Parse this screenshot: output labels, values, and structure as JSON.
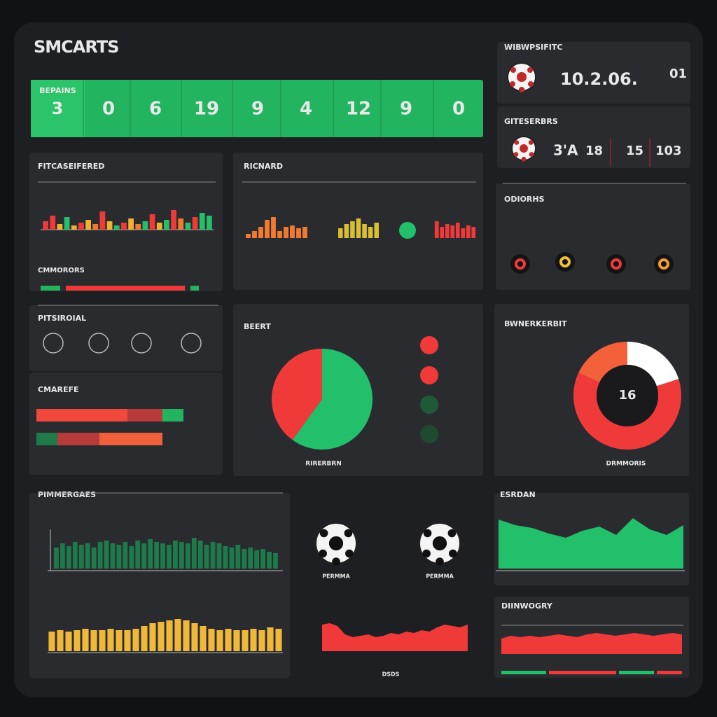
{
  "header": {
    "title": "SMCARTS"
  },
  "kpis": {
    "label": "BEPAINS",
    "values": [
      3,
      0,
      6,
      19,
      9,
      4,
      12,
      9,
      0
    ]
  },
  "trend": {
    "title": "FITCASEIFERED",
    "subtitle": "CMMORORS",
    "values": [
      12,
      20,
      8,
      18,
      6,
      10,
      14,
      8,
      26,
      12,
      6,
      10,
      16,
      8,
      12,
      22,
      10,
      14,
      28,
      16,
      10,
      18,
      24,
      20
    ],
    "colors": [
      "#f03a3a",
      "#f03a3a",
      "#f0b030",
      "#22c06a",
      "#f0b030",
      "#f03a3a",
      "#f0b030",
      "#f07a30",
      "#f03a3a",
      "#f0b030",
      "#22c06a",
      "#f03a3a",
      "#f0b030",
      "#f07a30",
      "#22c06a",
      "#f03a3a",
      "#f0b030",
      "#22c06a",
      "#f03a3a",
      "#f07a30",
      "#22c06a",
      "#f03a3a",
      "#22c06a",
      "#22c06a"
    ]
  },
  "mini": {
    "title": "RICNARD",
    "charts": [
      {
        "values": [
          6,
          10,
          16,
          26,
          30,
          10,
          16,
          18,
          14,
          16
        ],
        "color": "#f07a30"
      },
      {
        "values": [
          14,
          20,
          24,
          28,
          20,
          16,
          22
        ],
        "color": "#d8c030"
      },
      {
        "values": [
          24,
          16,
          20,
          18,
          22,
          14,
          18,
          16
        ],
        "color": "#f03a3a"
      }
    ]
  },
  "scores": {
    "title": "WIBWPSIFITC",
    "value": "10.2.06.",
    "side": "01"
  },
  "match": {
    "title": "GITESERBRS",
    "left": "3'A",
    "mid": "18",
    "right": "15",
    "far": "103"
  },
  "odds": {
    "title": "ODIORHS"
  },
  "profile": {
    "title": "PITSIROIAL"
  },
  "compare": {
    "title": "CMAREFE",
    "rows": [
      {
        "segments": [
          130,
          50,
          30
        ],
        "colors": [
          "#f0483a",
          "#b83a3a",
          "#22b45e"
        ]
      },
      {
        "segments": [
          30,
          60,
          90
        ],
        "colors": [
          "#1f7a4a",
          "#b83a3a",
          "#f0603a"
        ]
      }
    ]
  },
  "pie": {
    "title": "BEERT",
    "footer": "RIRERBRN",
    "values": [
      60,
      40
    ],
    "colors": [
      "#22c06a",
      "#f03a3a"
    ]
  },
  "donut": {
    "title": "BWNERKERBIT",
    "center": "16",
    "footer": "DRMMORIS",
    "values": [
      20,
      62,
      18
    ],
    "colors": [
      "#ffffff",
      "#f03a3a",
      "#f4603a"
    ]
  },
  "performance": {
    "title": "PIMMERGAES",
    "green": [
      30,
      36,
      32,
      38,
      34,
      36,
      30,
      38,
      40,
      36,
      34,
      38,
      32,
      40,
      36,
      42,
      38,
      36,
      34,
      40,
      38,
      36,
      44,
      40,
      34,
      38,
      36,
      32,
      30,
      34,
      28,
      30,
      26,
      28,
      24,
      22
    ],
    "yellow": [
      28,
      30,
      28,
      30,
      32,
      30,
      30,
      32,
      30,
      30,
      32,
      36,
      40,
      42,
      44,
      46,
      44,
      40,
      36,
      32,
      30,
      32,
      30,
      30,
      32,
      30,
      34,
      32
    ]
  },
  "balls": {
    "labels": [
      "PERMMA",
      "PERMMA"
    ],
    "footer": "DSDS"
  },
  "red_area": {
    "values": [
      38,
      40,
      36,
      24,
      20,
      22,
      24,
      20,
      22,
      26,
      24,
      28,
      26,
      30,
      28,
      34,
      38,
      36,
      34,
      38
    ]
  },
  "season": {
    "title": "ESRDAN",
    "values": [
      70,
      62,
      58,
      50,
      44,
      54,
      60,
      48,
      72,
      56,
      48,
      62
    ]
  },
  "history": {
    "title": "DIINWOGRY",
    "values": [
      22,
      26,
      24,
      26,
      24,
      26,
      28,
      26,
      24,
      28,
      30,
      28,
      26,
      28,
      30,
      28,
      26,
      28,
      30,
      28
    ]
  }
}
